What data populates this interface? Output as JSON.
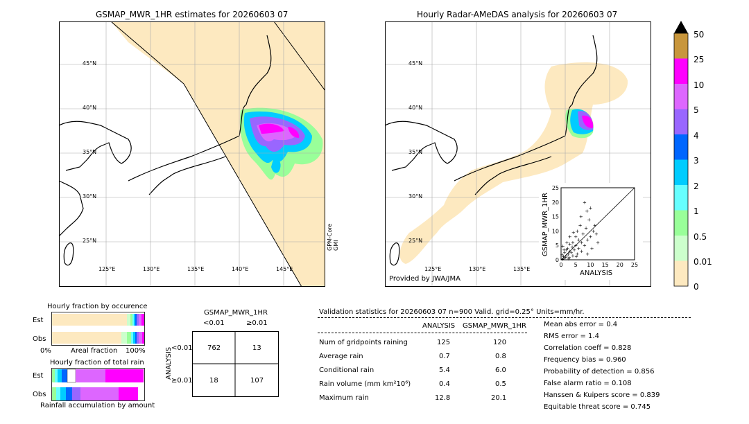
{
  "left_map": {
    "title": "GSMAP_MWR_1HR estimates for 20260603 07",
    "sensor_label": "GPM-Core GMI",
    "lat_labels": [
      "45°N",
      "40°N",
      "35°N",
      "30°N",
      "25°N"
    ],
    "lon_labels": [
      "125°E",
      "130°E",
      "135°E",
      "140°E",
      "145°E"
    ]
  },
  "right_map": {
    "title": "Hourly Radar-AMeDAS analysis for 20260603 07",
    "credit": "Provided by JWA/JMA",
    "lat_labels": [
      "45°N",
      "40°N",
      "35°N",
      "30°N",
      "25°N"
    ],
    "lon_labels": [
      "125°E",
      "130°E",
      "135°E"
    ]
  },
  "colorbar": {
    "labels": [
      "50",
      "25",
      "10",
      "5",
      "4",
      "3",
      "2",
      "1",
      "0.5",
      "0.01",
      "0"
    ],
    "colors": [
      "#c8963c",
      "#ff00ff",
      "#dd66ff",
      "#9966ff",
      "#0066ff",
      "#00ccff",
      "#66ffff",
      "#99ff99",
      "#ccffcc",
      "#fde9c0"
    ],
    "extend_color": "#000000"
  },
  "inset_scatter": {
    "xlabel": "ANALYSIS",
    "ylabel": "GSMAP_MWR_1HR",
    "ticks": [
      "0",
      "5",
      "10",
      "15",
      "20",
      "25"
    ]
  },
  "fraction_occurrence": {
    "title": "Hourly fraction by occurence",
    "rows": [
      "Est",
      "Obs"
    ],
    "axis_left": "0%",
    "axis_mid": "Areal fraction",
    "axis_right": "100%"
  },
  "fraction_total": {
    "title": "Hourly fraction of total rain",
    "rows": [
      "Est",
      "Obs"
    ],
    "footer": "Rainfall accumulation by amount"
  },
  "contingency": {
    "title": "GSMAP_MWR_1HR",
    "col_labels": [
      "<0.01",
      "≥0.01"
    ],
    "row_axis": "ANALYSIS",
    "row_labels": [
      "<0.01",
      "≥0.01"
    ],
    "cells": [
      [
        "762",
        "13"
      ],
      [
        "18",
        "107"
      ]
    ]
  },
  "validation": {
    "header": "Validation statistics for 20260603 07  n=900 Valid. grid=0.25° Units=mm/hr.",
    "col_headers": [
      "ANALYSIS",
      "GSMAP_MWR_1HR"
    ],
    "rows": [
      {
        "label": "Num of gridpoints raining",
        "a": "125",
        "b": "120"
      },
      {
        "label": "Average rain",
        "a": "0.7",
        "b": "0.8"
      },
      {
        "label": "Conditional rain",
        "a": "5.4",
        "b": "6.0"
      },
      {
        "label": "Rain volume (mm km²10⁶)",
        "a": "0.4",
        "b": "0.5"
      },
      {
        "label": "Maximum rain",
        "a": "12.8",
        "b": "20.1"
      }
    ],
    "scores": [
      "Mean abs error =    0.4",
      "RMS error =    1.4",
      "Correlation coeff =  0.828",
      "Frequency bias =  0.960",
      "Probability of detection =  0.856",
      "False alarm ratio =  0.108",
      "Hanssen & Kuipers score =  0.839",
      "Equitable threat score =  0.745"
    ]
  },
  "chart_data": [
    {
      "type": "scatter",
      "xlabel": "ANALYSIS",
      "ylabel": "GSMAP_MWR_1HR",
      "xlim": [
        0,
        25
      ],
      "ylim": [
        0,
        25
      ],
      "points": [
        [
          0.5,
          0.3
        ],
        [
          0.8,
          1.2
        ],
        [
          1,
          0.5
        ],
        [
          1.2,
          2.5
        ],
        [
          1.5,
          1
        ],
        [
          1.8,
          3.5
        ],
        [
          2,
          1.5
        ],
        [
          2.2,
          4
        ],
        [
          2.5,
          2
        ],
        [
          2.8,
          0.8
        ],
        [
          3,
          3
        ],
        [
          3,
          5.5
        ],
        [
          3.5,
          2.5
        ],
        [
          3.8,
          4.5
        ],
        [
          4,
          1.5
        ],
        [
          4,
          6
        ],
        [
          4.5,
          3.5
        ],
        [
          5,
          5
        ],
        [
          5,
          8
        ],
        [
          5.5,
          2
        ],
        [
          5.5,
          10
        ],
        [
          6,
          4
        ],
        [
          6,
          7
        ],
        [
          6.5,
          12
        ],
        [
          7,
          6
        ],
        [
          7,
          3
        ],
        [
          7.5,
          9
        ],
        [
          8,
          20
        ],
        [
          8,
          5
        ],
        [
          8.5,
          11
        ],
        [
          9,
          7
        ],
        [
          9,
          2
        ],
        [
          9.5,
          14
        ],
        [
          10,
          8
        ],
        [
          10,
          18
        ],
        [
          10.5,
          4
        ],
        [
          11,
          10
        ],
        [
          11.5,
          12
        ],
        [
          12,
          9
        ],
        [
          12.5,
          6
        ],
        [
          1,
          3.5
        ],
        [
          2,
          6
        ],
        [
          3,
          8
        ],
        [
          0.3,
          1.8
        ],
        [
          4.2,
          9.5
        ],
        [
          6.8,
          15
        ],
        [
          8.8,
          17
        ],
        [
          2.6,
          0.4
        ],
        [
          5.2,
          1.2
        ],
        [
          0.6,
          4.8
        ]
      ]
    },
    {
      "type": "bar",
      "title": "Hourly fraction by occurence",
      "categories": [
        "Est",
        "Obs"
      ]
    },
    {
      "type": "bar",
      "title": "Hourly fraction of total rain",
      "categories": [
        "Est",
        "Obs"
      ]
    }
  ]
}
